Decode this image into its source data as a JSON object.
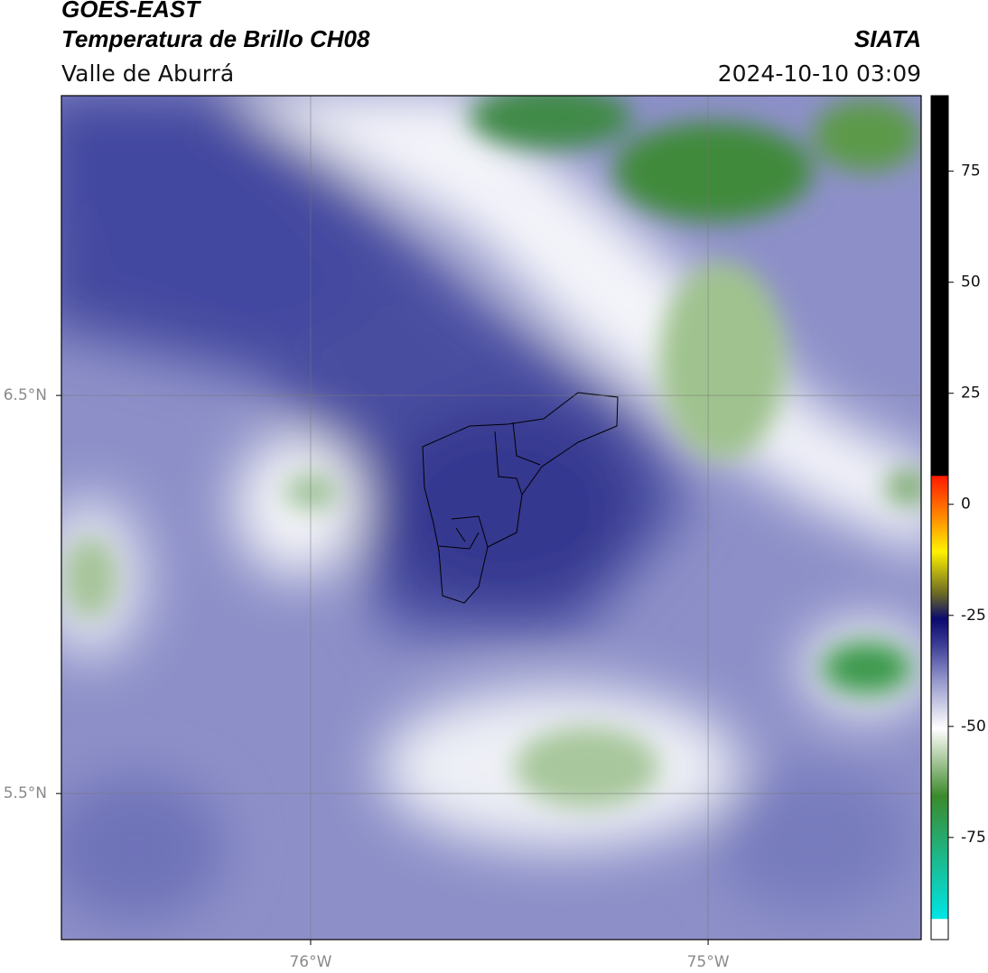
{
  "header": {
    "title": "GOES-EAST",
    "subtitle": "Temperatura de Brillo CH08",
    "region": "Valle de Aburrá",
    "source": "SIATA",
    "datetime": "2024-10-10 03:09"
  },
  "map": {
    "lon_range": [
      -76.627,
      -74.464
    ],
    "lat_range": [
      5.133,
      7.253
    ],
    "lat_ticks": [
      {
        "value": 6.5,
        "label": "6.5°N"
      },
      {
        "value": 5.5,
        "label": "5.5°N"
      }
    ],
    "lon_ticks": [
      {
        "value": -76,
        "label": "76°W"
      },
      {
        "value": -75,
        "label": "75°W"
      }
    ],
    "grid": true
  },
  "colorbar": {
    "range": [
      -98,
      92
    ],
    "ticks": [
      75,
      50,
      25,
      0,
      -25,
      -50,
      -75
    ]
  }
}
